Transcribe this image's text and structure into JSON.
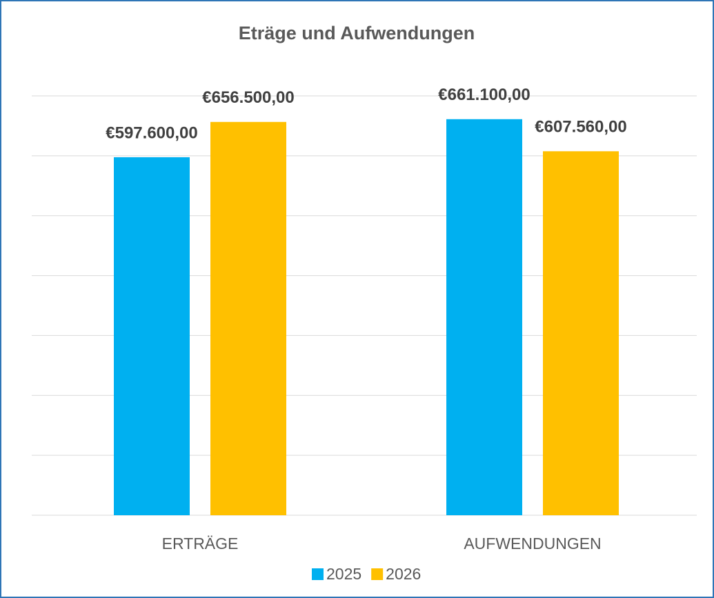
{
  "chart_data": {
    "type": "bar",
    "title": "Eträge und Aufwendungen",
    "categories": [
      "ERTRÄGE",
      "AUFWENDUNGEN"
    ],
    "series": [
      {
        "name": "2025",
        "color": "#00b0f0",
        "values": [
          597600,
          661100
        ],
        "value_labels": [
          "€597.600,00",
          "€661.100,00"
        ]
      },
      {
        "name": "2026",
        "color": "#ffc000",
        "values": [
          656500,
          607560
        ],
        "value_labels": [
          "€656.500,00",
          "€607.560,00"
        ]
      }
    ],
    "ylim": [
      0,
      700000
    ],
    "yticks": [
      0,
      100000,
      200000,
      300000,
      400000,
      500000,
      600000,
      700000
    ],
    "grid": true,
    "legend": "bottom"
  }
}
